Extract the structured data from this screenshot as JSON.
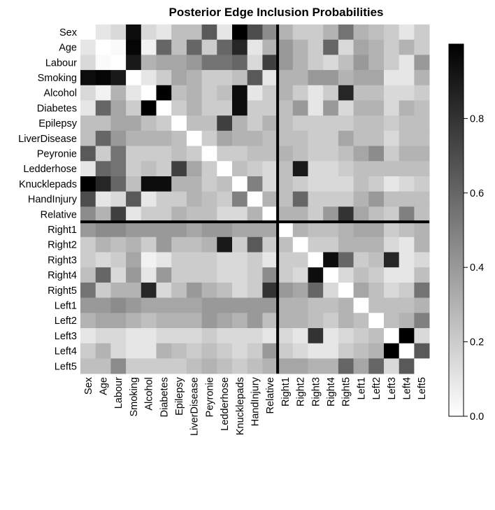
{
  "chart_data": {
    "type": "heatmap",
    "title": "Posterior Edge Inclusion Probabilities",
    "labels": [
      "Sex",
      "Age",
      "Labour",
      "Smoking",
      "Alcohol",
      "Diabetes",
      "Epilepsy",
      "LiverDisease",
      "Peyronie",
      "Ledderhose",
      "Knucklepads",
      "HandInjury",
      "Relative",
      "Right1",
      "Right2",
      "Right3",
      "Right4",
      "Right5",
      "Left1",
      "Left2",
      "Left3",
      "Left4",
      "Left5"
    ],
    "group_split_after": "Relative",
    "color_scale": {
      "low": "#ffffff",
      "high": "#000000",
      "min": 0,
      "max": 1
    },
    "colorbar": {
      "ticks": [
        0.0,
        0.2,
        0.4,
        0.6,
        0.8
      ],
      "tick_labels": [
        "0.0",
        "0.2",
        "0.4",
        "0.6",
        "0.8"
      ]
    },
    "values": [
      [
        0.0,
        0.1,
        0.15,
        0.95,
        0.15,
        0.1,
        0.25,
        0.25,
        0.65,
        0.1,
        1.0,
        0.7,
        0.45,
        0.3,
        0.2,
        0.2,
        0.3,
        0.55,
        0.3,
        0.25,
        0.2,
        0.1,
        0.2
      ],
      [
        0.1,
        0.0,
        0.02,
        0.98,
        0.05,
        0.6,
        0.25,
        0.6,
        0.2,
        0.6,
        0.85,
        0.1,
        0.3,
        0.4,
        0.3,
        0.2,
        0.6,
        0.15,
        0.35,
        0.3,
        0.2,
        0.3,
        0.2
      ],
      [
        0.15,
        0.02,
        0.0,
        0.9,
        0.3,
        0.35,
        0.35,
        0.4,
        0.55,
        0.55,
        0.6,
        0.15,
        0.75,
        0.4,
        0.3,
        0.2,
        0.15,
        0.25,
        0.4,
        0.3,
        0.2,
        0.1,
        0.4
      ],
      [
        0.95,
        0.98,
        0.9,
        0.0,
        0.1,
        0.2,
        0.35,
        0.3,
        0.2,
        0.2,
        0.25,
        0.65,
        0.1,
        0.3,
        0.3,
        0.4,
        0.4,
        0.3,
        0.35,
        0.35,
        0.1,
        0.1,
        0.3
      ],
      [
        0.15,
        0.05,
        0.3,
        0.1,
        0.0,
        1.0,
        0.25,
        0.3,
        0.2,
        0.25,
        0.95,
        0.1,
        0.2,
        0.3,
        0.2,
        0.1,
        0.2,
        0.85,
        0.25,
        0.25,
        0.15,
        0.15,
        0.2
      ],
      [
        0.1,
        0.6,
        0.35,
        0.2,
        1.0,
        0.0,
        0.2,
        0.3,
        0.2,
        0.2,
        0.95,
        0.2,
        0.2,
        0.25,
        0.4,
        0.1,
        0.4,
        0.15,
        0.3,
        0.3,
        0.15,
        0.3,
        0.25
      ],
      [
        0.25,
        0.25,
        0.35,
        0.35,
        0.25,
        0.2,
        0.0,
        0.25,
        0.25,
        0.75,
        0.3,
        0.2,
        0.3,
        0.25,
        0.2,
        0.2,
        0.2,
        0.2,
        0.25,
        0.25,
        0.2,
        0.25,
        0.25
      ],
      [
        0.25,
        0.6,
        0.4,
        0.3,
        0.3,
        0.3,
        0.25,
        0.0,
        0.2,
        0.35,
        0.3,
        0.3,
        0.25,
        0.25,
        0.25,
        0.2,
        0.2,
        0.35,
        0.25,
        0.25,
        0.15,
        0.25,
        0.25
      ],
      [
        0.65,
        0.2,
        0.55,
        0.2,
        0.2,
        0.2,
        0.25,
        0.2,
        0.0,
        0.2,
        0.2,
        0.25,
        0.25,
        0.3,
        0.25,
        0.2,
        0.2,
        0.25,
        0.35,
        0.45,
        0.2,
        0.3,
        0.3
      ],
      [
        0.1,
        0.6,
        0.55,
        0.2,
        0.25,
        0.2,
        0.75,
        0.35,
        0.2,
        0.0,
        0.25,
        0.2,
        0.15,
        0.25,
        0.9,
        0.15,
        0.15,
        0.2,
        0.25,
        0.25,
        0.25,
        0.25,
        0.25
      ],
      [
        1.0,
        0.85,
        0.6,
        0.25,
        0.95,
        0.95,
        0.3,
        0.3,
        0.2,
        0.25,
        0.0,
        0.5,
        0.15,
        0.25,
        0.2,
        0.15,
        0.15,
        0.15,
        0.25,
        0.2,
        0.1,
        0.15,
        0.2
      ],
      [
        0.7,
        0.1,
        0.15,
        0.65,
        0.1,
        0.2,
        0.2,
        0.3,
        0.25,
        0.2,
        0.5,
        0.0,
        0.3,
        0.25,
        0.6,
        0.2,
        0.2,
        0.2,
        0.3,
        0.4,
        0.25,
        0.25,
        0.25
      ],
      [
        0.45,
        0.3,
        0.75,
        0.1,
        0.2,
        0.2,
        0.3,
        0.25,
        0.25,
        0.15,
        0.15,
        0.3,
        0.0,
        0.3,
        0.3,
        0.2,
        0.4,
        0.8,
        0.35,
        0.25,
        0.2,
        0.5,
        0.25
      ],
      [
        0.4,
        0.45,
        0.45,
        0.4,
        0.4,
        0.4,
        0.4,
        0.35,
        0.4,
        0.4,
        0.35,
        0.35,
        0.35,
        0.0,
        0.3,
        0.25,
        0.25,
        0.3,
        0.35,
        0.35,
        0.2,
        0.25,
        0.3
      ],
      [
        0.2,
        0.3,
        0.25,
        0.3,
        0.2,
        0.4,
        0.25,
        0.25,
        0.3,
        0.9,
        0.2,
        0.65,
        0.2,
        0.25,
        0.0,
        0.2,
        0.2,
        0.3,
        0.3,
        0.3,
        0.15,
        0.1,
        0.3
      ],
      [
        0.2,
        0.15,
        0.2,
        0.35,
        0.05,
        0.1,
        0.2,
        0.2,
        0.2,
        0.15,
        0.15,
        0.2,
        0.1,
        0.2,
        0.2,
        0.0,
        0.95,
        0.6,
        0.2,
        0.25,
        0.85,
        0.1,
        0.15
      ],
      [
        0.25,
        0.6,
        0.15,
        0.4,
        0.1,
        0.4,
        0.2,
        0.2,
        0.2,
        0.15,
        0.15,
        0.2,
        0.45,
        0.2,
        0.15,
        0.95,
        0.0,
        0.15,
        0.25,
        0.2,
        0.1,
        0.1,
        0.25
      ],
      [
        0.55,
        0.2,
        0.3,
        0.3,
        0.85,
        0.15,
        0.25,
        0.4,
        0.3,
        0.25,
        0.15,
        0.2,
        0.8,
        0.4,
        0.35,
        0.6,
        0.15,
        0.0,
        0.35,
        0.25,
        0.15,
        0.2,
        0.55
      ],
      [
        0.4,
        0.4,
        0.45,
        0.4,
        0.35,
        0.35,
        0.35,
        0.35,
        0.4,
        0.4,
        0.4,
        0.4,
        0.4,
        0.3,
        0.3,
        0.25,
        0.25,
        0.3,
        0.0,
        0.25,
        0.25,
        0.25,
        0.3
      ],
      [
        0.3,
        0.35,
        0.35,
        0.3,
        0.25,
        0.3,
        0.3,
        0.3,
        0.4,
        0.35,
        0.3,
        0.4,
        0.25,
        0.3,
        0.3,
        0.25,
        0.2,
        0.3,
        0.25,
        0.0,
        0.25,
        0.3,
        0.5
      ],
      [
        0.1,
        0.15,
        0.15,
        0.1,
        0.1,
        0.15,
        0.15,
        0.15,
        0.2,
        0.15,
        0.15,
        0.15,
        0.1,
        0.15,
        0.1,
        0.8,
        0.1,
        0.15,
        0.2,
        0.25,
        0.0,
        1.0,
        0.15
      ],
      [
        0.2,
        0.3,
        0.15,
        0.1,
        0.1,
        0.3,
        0.25,
        0.2,
        0.25,
        0.2,
        0.15,
        0.2,
        0.4,
        0.2,
        0.15,
        0.1,
        0.1,
        0.2,
        0.25,
        0.3,
        1.0,
        0.0,
        0.65
      ],
      [
        0.25,
        0.25,
        0.45,
        0.2,
        0.2,
        0.2,
        0.2,
        0.25,
        0.3,
        0.25,
        0.2,
        0.25,
        0.3,
        0.35,
        0.35,
        0.3,
        0.3,
        0.6,
        0.35,
        0.6,
        0.15,
        0.65,
        0.0
      ]
    ]
  }
}
